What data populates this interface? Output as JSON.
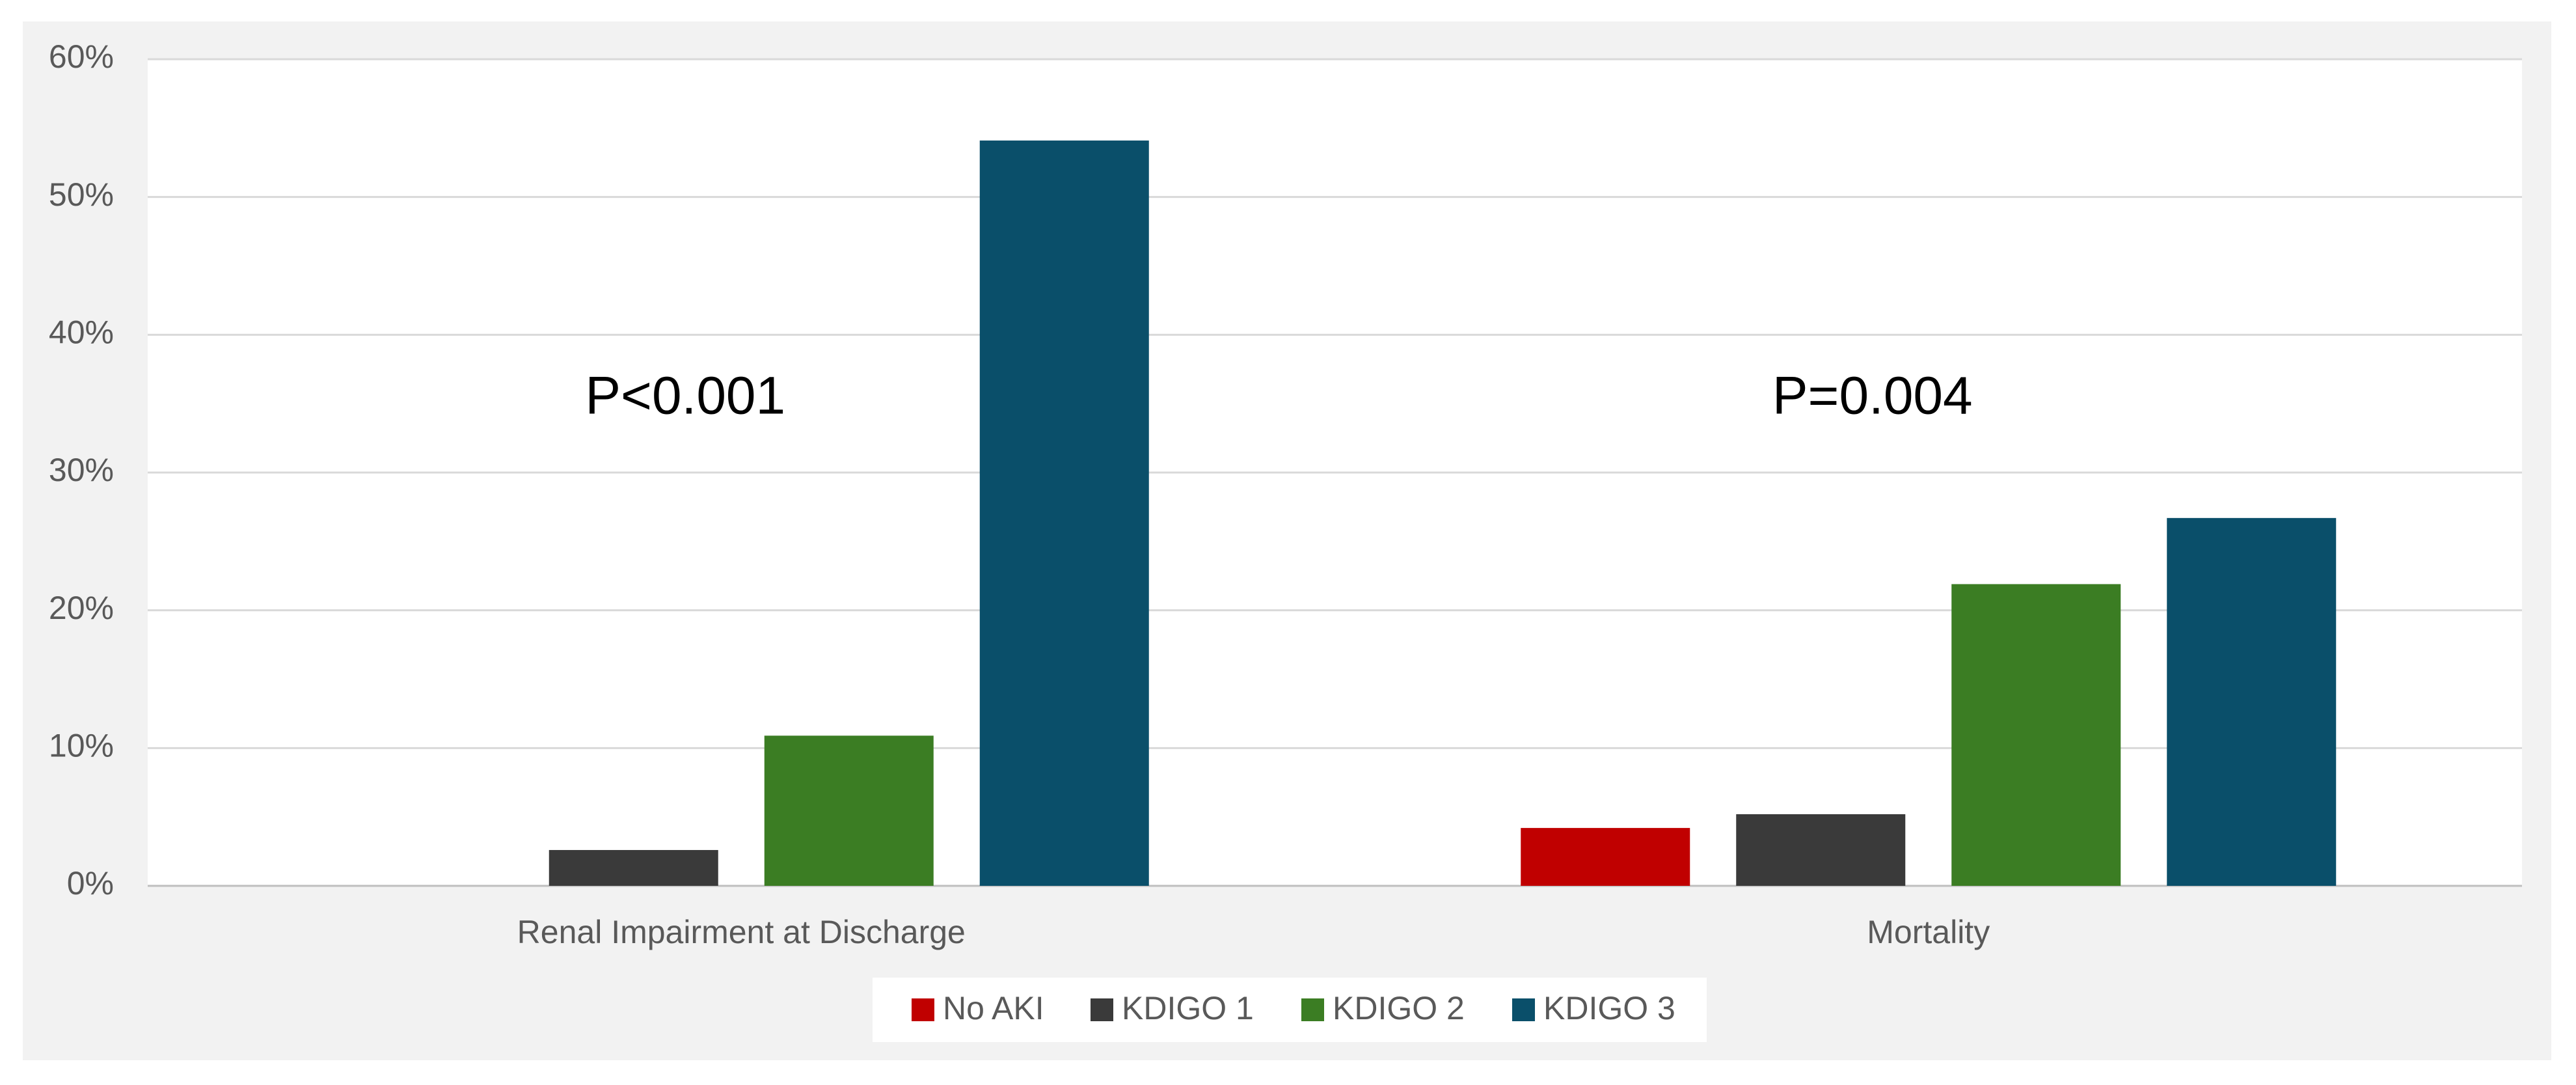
{
  "chart_data": {
    "type": "bar",
    "categories": [
      "Renal Impairment at Discharge",
      "Mortality"
    ],
    "series": [
      {
        "name": "No AKI",
        "color": "#c00000",
        "values": [
          0,
          4.2
        ]
      },
      {
        "name": "KDIGO 1",
        "color": "#3a3a3a",
        "values": [
          2.6,
          5.2
        ]
      },
      {
        "name": "KDIGO 2",
        "color": "#3b7d23",
        "values": [
          10.9,
          21.9
        ]
      },
      {
        "name": "KDIGO 3",
        "color": "#0a4f6a",
        "values": [
          54.1,
          26.7
        ]
      }
    ],
    "annotations": [
      "P<0.001",
      "P=0.004"
    ],
    "ylim": [
      0,
      60
    ],
    "yticks": [
      {
        "value": 0,
        "label": "0%"
      },
      {
        "value": 10,
        "label": "10%"
      },
      {
        "value": 20,
        "label": "20%"
      },
      {
        "value": 30,
        "label": "30%"
      },
      {
        "value": 40,
        "label": "40%"
      },
      {
        "value": 50,
        "label": "50%"
      },
      {
        "value": 60,
        "label": "60%"
      }
    ],
    "grid": true,
    "legend": "bottom"
  }
}
